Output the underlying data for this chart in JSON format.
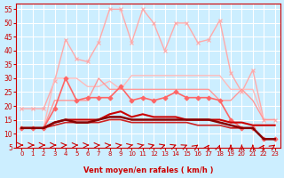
{
  "x": [
    0,
    1,
    2,
    3,
    4,
    5,
    6,
    7,
    8,
    9,
    10,
    11,
    12,
    13,
    14,
    15,
    16,
    17,
    18,
    19,
    20,
    21,
    22,
    23
  ],
  "series": [
    {
      "name": "rafales_max",
      "y": [
        19,
        19,
        19,
        29,
        44,
        37,
        36,
        43,
        55,
        55,
        43,
        55,
        50,
        40,
        50,
        50,
        43,
        44,
        51,
        32,
        25,
        33,
        15,
        15
      ],
      "color": "#ffaaaa",
      "linewidth": 1.0,
      "marker": "x",
      "markersize": 3,
      "zorder": 2
    },
    {
      "name": "rafales_mean",
      "y": [
        12,
        12,
        12,
        30,
        30,
        30,
        27,
        27,
        29,
        26,
        31,
        31,
        31,
        31,
        31,
        31,
        31,
        31,
        31,
        26,
        26,
        26,
        15,
        15
      ],
      "color": "#ffbbbb",
      "linewidth": 1.0,
      "marker": null,
      "markersize": 0,
      "zorder": 2
    },
    {
      "name": "vent_max",
      "y": [
        12,
        12,
        12,
        19,
        30,
        22,
        23,
        23,
        23,
        27,
        22,
        23,
        22,
        23,
        25,
        23,
        23,
        23,
        22,
        15,
        12,
        12,
        8,
        8
      ],
      "color": "#ff6666",
      "linewidth": 1.2,
      "marker": "D",
      "markersize": 2.5,
      "zorder": 3
    },
    {
      "name": "vent_high",
      "y": [
        12,
        12,
        12,
        22,
        22,
        22,
        22,
        30,
        26,
        26,
        26,
        26,
        26,
        26,
        26,
        26,
        26,
        26,
        22,
        22,
        26,
        22,
        15,
        15
      ],
      "color": "#ff9999",
      "linewidth": 1.0,
      "marker": null,
      "markersize": 0,
      "zorder": 2
    },
    {
      "name": "vent_low",
      "y": [
        12,
        12,
        12,
        14,
        15,
        15,
        15,
        15,
        17,
        18,
        16,
        17,
        16,
        16,
        16,
        15,
        15,
        15,
        15,
        14,
        14,
        13,
        13,
        13
      ],
      "color": "#cc0000",
      "linewidth": 1.5,
      "marker": null,
      "markersize": 0,
      "zorder": 4
    },
    {
      "name": "vent_mean",
      "y": [
        12,
        12,
        12,
        14,
        15,
        14,
        14,
        15,
        16,
        16,
        15,
        15,
        15,
        15,
        15,
        15,
        15,
        15,
        14,
        13,
        12,
        12,
        8,
        8
      ],
      "color": "#880000",
      "linewidth": 1.8,
      "marker": null,
      "markersize": 0,
      "zorder": 5
    },
    {
      "name": "vent_extra",
      "y": [
        12,
        12,
        12,
        13,
        14,
        14,
        14,
        14,
        15,
        15,
        14,
        14,
        14,
        14,
        14,
        14,
        13,
        13,
        13,
        12,
        12,
        12,
        8,
        8
      ],
      "color": "#cc2222",
      "linewidth": 1.2,
      "marker": null,
      "markersize": 0,
      "zorder": 3
    }
  ],
  "arrows": [
    0,
    1,
    2,
    3,
    4,
    5,
    6,
    7,
    8,
    9,
    10,
    11,
    12,
    13,
    14,
    15,
    16,
    17,
    18,
    19,
    20,
    21,
    22,
    23
  ],
  "arrow_rotations": [
    90,
    90,
    90,
    90,
    80,
    80,
    80,
    80,
    70,
    60,
    50,
    50,
    45,
    40,
    35,
    30,
    20,
    10,
    5,
    0,
    0,
    0,
    10,
    20
  ],
  "xlabel": "Vent moyen/en rafales ( km/h )",
  "ylabel": "",
  "ylim": [
    5,
    57
  ],
  "xlim": [
    -0.5,
    23.5
  ],
  "yticks": [
    5,
    10,
    15,
    20,
    25,
    30,
    35,
    40,
    45,
    50,
    55
  ],
  "xticks": [
    0,
    1,
    2,
    3,
    4,
    5,
    6,
    7,
    8,
    9,
    10,
    11,
    12,
    13,
    14,
    15,
    16,
    17,
    18,
    19,
    20,
    21,
    22,
    23
  ],
  "bg_color": "#cceeff",
  "grid_color": "#ffffff",
  "tick_color": "#cc0000",
  "label_color": "#cc0000",
  "title_color": "#cc0000"
}
